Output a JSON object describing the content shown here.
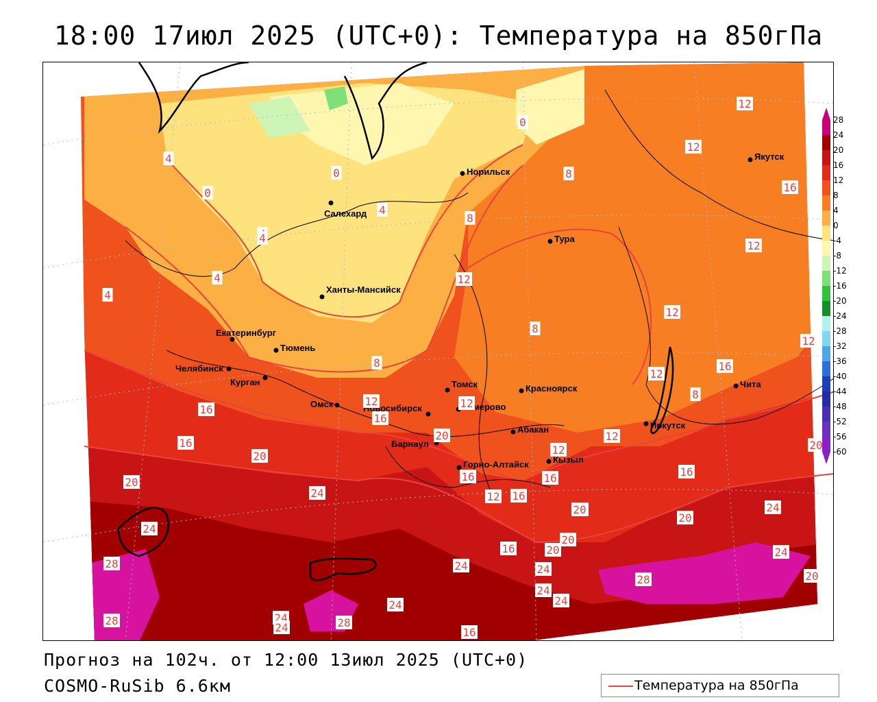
{
  "title": "18:00 17июл 2025 (UTC+0): Температура на 850гПа",
  "footer": {
    "forecast": "Прогноз на 102ч. от 12:00 13июл 2025 (UTC+0)",
    "model": "COSMO-RuSib 6.6км"
  },
  "legend": {
    "label": "Температура на 850гПа",
    "line_color": "#e8433c"
  },
  "color_scale": {
    "levels": [
      "28",
      "24",
      "20",
      "16",
      "12",
      "8",
      "4",
      "0",
      "-4",
      "-8",
      "-12",
      "-16",
      "-20",
      "-24",
      "-28",
      "-32",
      "-36",
      "-40",
      "-44",
      "-48",
      "-52",
      "-56",
      "-60"
    ],
    "colors": [
      "#c8007a",
      "#a00000",
      "#c81414",
      "#e32b1a",
      "#f0521e",
      "#f77e22",
      "#fcb043",
      "#fde27d",
      "#fff7b0",
      "#cdf5b6",
      "#7fe07a",
      "#30c23a",
      "#158f2a",
      "#b2f0f0",
      "#80d8f0",
      "#4aa8e8",
      "#2a70d8",
      "#1c40b8",
      "#2a2aa0",
      "#4a30b0",
      "#6a30c0",
      "#8a20c8"
    ]
  },
  "cities": [
    {
      "name": "Норильск"
    },
    {
      "name": "Якутск"
    },
    {
      "name": "Салехард"
    },
    {
      "name": "Тура"
    },
    {
      "name": "Ханты-Мансийск"
    },
    {
      "name": "Екатеринбург"
    },
    {
      "name": "Тюмень"
    },
    {
      "name": "Челябинск"
    },
    {
      "name": "Курган"
    },
    {
      "name": "Омск"
    },
    {
      "name": "Новосибирск"
    },
    {
      "name": "Томск"
    },
    {
      "name": "Кемерово"
    },
    {
      "name": "Красноярск"
    },
    {
      "name": "Барнаул"
    },
    {
      "name": "Абакан"
    },
    {
      "name": "Горно-Алтайск"
    },
    {
      "name": "Кызыл"
    },
    {
      "name": "Иркутск"
    },
    {
      "name": "Чита"
    }
  ],
  "contour_labels": [
    "12",
    "12",
    "16",
    "12",
    "4",
    "0",
    "4",
    "0",
    "4",
    "4",
    "0",
    "8",
    "8",
    "12",
    "4",
    "4",
    "8",
    "8",
    "12",
    "12",
    "12",
    "16",
    "8",
    "12",
    "16",
    "12",
    "16",
    "16",
    "12",
    "20",
    "16",
    "20",
    "20",
    "12",
    "16",
    "16",
    "12",
    "16",
    "16",
    "20",
    "24",
    "24",
    "20",
    "24",
    "20",
    "24",
    "28",
    "24",
    "16",
    "20",
    "20",
    "24",
    "24",
    "24",
    "28",
    "24",
    "24",
    "20",
    "28",
    "28",
    "24",
    "16"
  ]
}
